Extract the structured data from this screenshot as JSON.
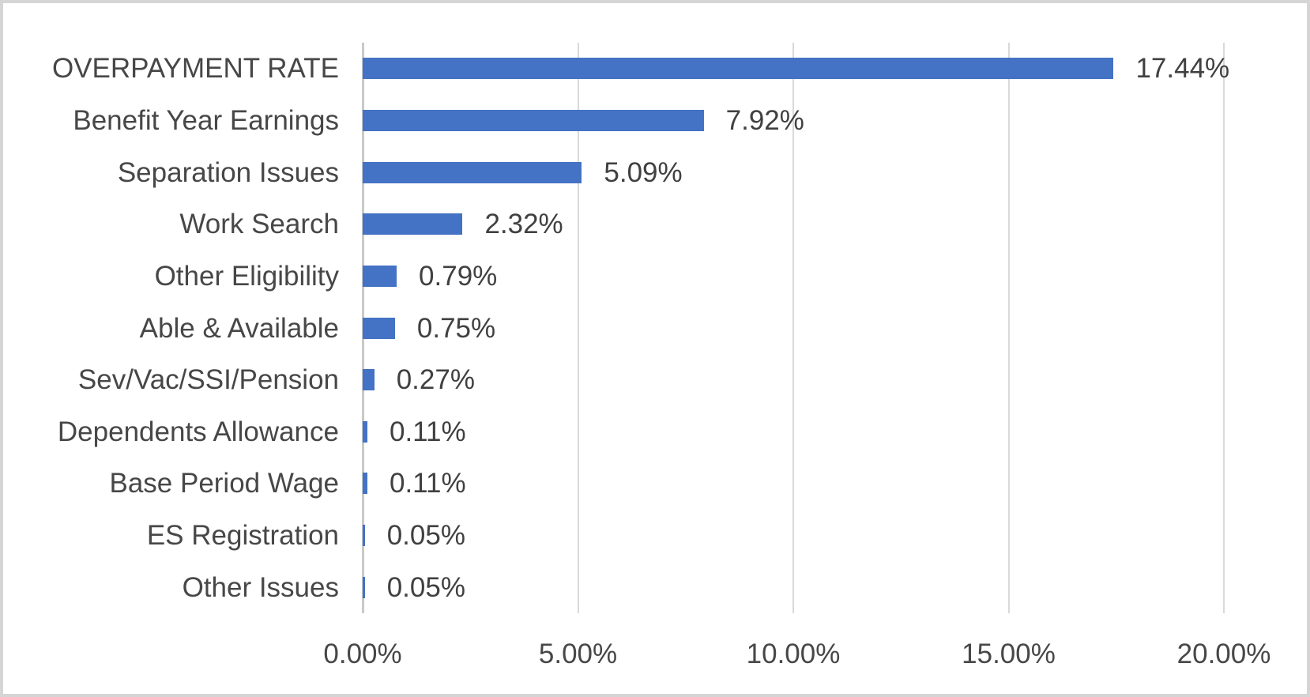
{
  "chart_data": {
    "type": "bar",
    "orientation": "horizontal",
    "title": "",
    "xlabel": "",
    "ylabel": "",
    "xlim": [
      0,
      20
    ],
    "grid": true,
    "legend_position": "none",
    "categories": [
      "OVERPAYMENT RATE",
      "Benefit Year Earnings",
      "Separation Issues",
      "Work Search",
      "Other Eligibility",
      "Able & Available",
      "Sev/Vac/SSI/Pension",
      "Dependents Allowance",
      "Base Period Wage",
      "ES Registration",
      "Other Issues"
    ],
    "values": [
      17.44,
      7.92,
      5.09,
      2.32,
      0.79,
      0.75,
      0.27,
      0.11,
      0.11,
      0.05,
      0.05
    ],
    "value_labels": [
      "17.44%",
      "7.92%",
      "5.09%",
      "2.32%",
      "0.79%",
      "0.75%",
      "0.27%",
      "0.11%",
      "0.11%",
      "0.05%",
      "0.05%"
    ],
    "x_tick_values": [
      0,
      5,
      10,
      15,
      20
    ],
    "x_tick_labels": [
      "0.00%",
      "5.00%",
      "10.00%",
      "15.00%",
      "20.00%"
    ]
  },
  "colors": {
    "bar": "#4472c4",
    "gridline": "#d9d9d9",
    "axis_line": "#c9c9c9",
    "category_text": "#474747",
    "value_text": "#404040",
    "frame_border": "#d5d5d5",
    "background": "#ffffff"
  }
}
